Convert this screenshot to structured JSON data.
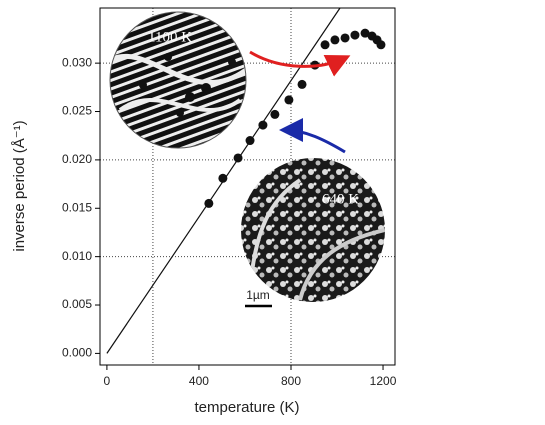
{
  "chart_data": {
    "type": "scatter",
    "xlabel": "temperature (K)",
    "ylabel": "inverse period (Å⁻¹)",
    "x": [
      443,
      504,
      570,
      622,
      678,
      730,
      791,
      848,
      904,
      948,
      991,
      1035,
      1078,
      1122,
      1152,
      1174,
      1191
    ],
    "values": [
      0.0155,
      0.0181,
      0.0202,
      0.022,
      0.0236,
      0.0247,
      0.0262,
      0.0278,
      0.0298,
      0.0319,
      0.0324,
      0.0326,
      0.0329,
      0.0331,
      0.0328,
      0.0324,
      0.0319
    ],
    "color": "#111111",
    "line": {
      "x": [
        0,
        1013
      ],
      "values": [
        0,
        0.0357
      ],
      "color": "#111111"
    },
    "xlim": [
      -30,
      1252
    ],
    "ylim": [
      -0.0012,
      0.0357
    ],
    "xticks": [
      0,
      400,
      800,
      1200
    ],
    "yticks": [
      {
        "value": 0,
        "label": "0.000"
      },
      {
        "value": 0.005,
        "label": "0.005"
      },
      {
        "value": 0.01,
        "label": "0.010"
      },
      {
        "value": 0.015,
        "label": "0.015"
      },
      {
        "value": 0.02,
        "label": "0.020"
      },
      {
        "value": 0.025,
        "label": "0.025"
      },
      {
        "value": 0.03,
        "label": "0.030"
      }
    ],
    "xgrid": [
      200,
      800
    ],
    "ygrid": [
      0.01,
      0.02,
      0.03
    ],
    "insets": [
      {
        "label": "1100 K"
      },
      {
        "label": "640 K",
        "scale_bar": "1µm"
      }
    ]
  }
}
